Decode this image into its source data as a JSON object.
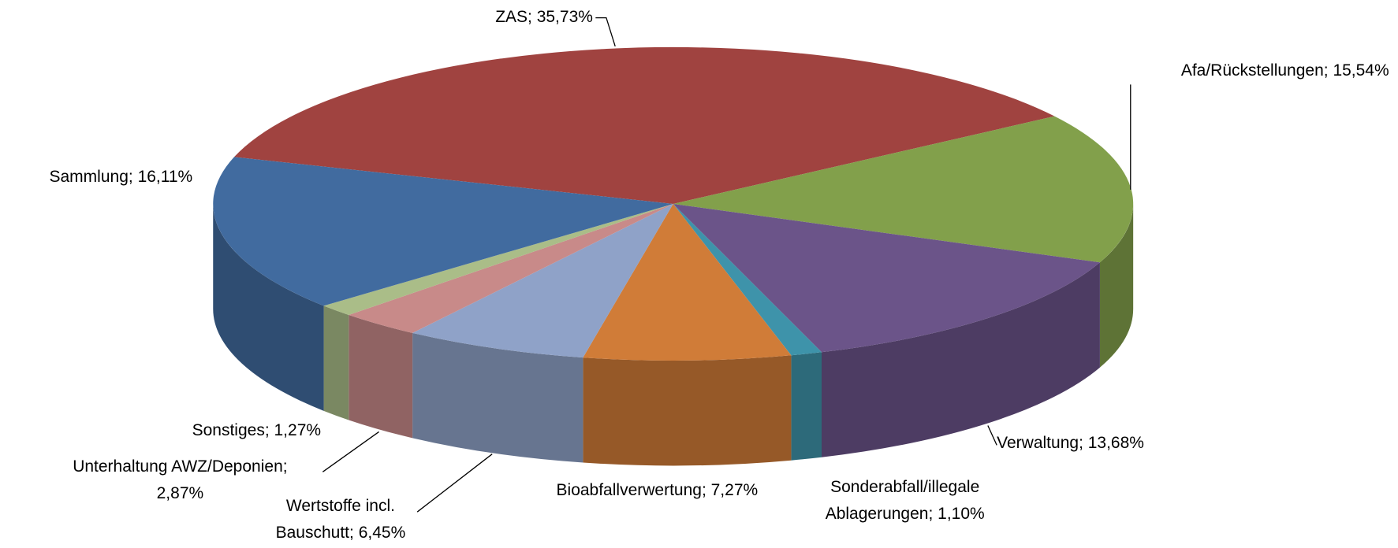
{
  "chart_data": {
    "type": "pie3d",
    "categories": [
      "ZAS",
      "Afa/Rückstellungen",
      "Verwaltung",
      "Sonderabfall/illegale Ablagerungen",
      "Bioabfallverwertung",
      "Wertstoffe incl. Bauschutt",
      "Unterhaltung AWZ/Deponien",
      "Sonstiges",
      "Sammlung"
    ],
    "values": [
      35.73,
      15.54,
      13.68,
      1.1,
      7.27,
      6.45,
      2.87,
      1.27,
      16.11
    ],
    "value_labels": [
      "35,73%",
      "15,54%",
      "13,68%",
      "1,10%",
      "7,27%",
      "6,45%",
      "2,87%",
      "1,27%",
      "16,11%"
    ],
    "colors": [
      "#a04340",
      "#82a04b",
      "#6b5489",
      "#3e93aa",
      "#d07c38",
      "#8fa2c8",
      "#c88a89",
      "#aabd88",
      "#416b9f"
    ],
    "legend": false
  }
}
